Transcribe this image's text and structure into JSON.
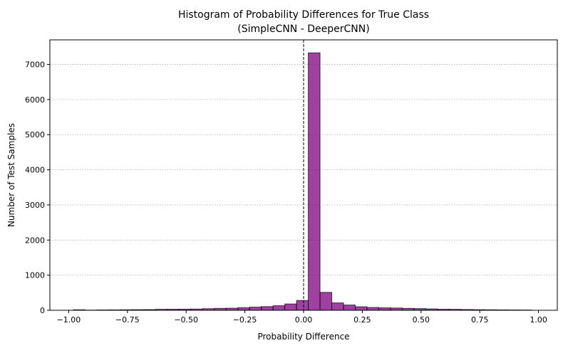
{
  "chart_data": {
    "type": "bar",
    "title": "Histogram of Probability Differences for True Class",
    "subtitle": "(SimpleCNN - DeeperCNN)",
    "xlabel": "Probability Difference",
    "ylabel": "Number of Test Samples",
    "xlim": [
      -1.08,
      1.08
    ],
    "ylim": [
      0,
      7700
    ],
    "xticks": [
      -1.0,
      -0.75,
      -0.5,
      -0.25,
      0.0,
      0.25,
      0.5,
      0.75,
      1.0
    ],
    "xtick_labels": [
      "−1.00",
      "−0.75",
      "−0.50",
      "−0.25",
      "0.00",
      "0.25",
      "0.50",
      "0.75",
      "1.00"
    ],
    "yticks": [
      0,
      1000,
      2000,
      3000,
      4000,
      5000,
      6000,
      7000
    ],
    "ytick_labels": [
      "0",
      "1000",
      "2000",
      "3000",
      "4000",
      "5000",
      "6000",
      "7000"
    ],
    "grid": "y-dotted",
    "bar_color": "#800080",
    "bar_alpha": 0.75,
    "edge_color": "#000000",
    "vline": {
      "x": 0.0,
      "style": "dashed",
      "color": "#000000"
    },
    "bin_edges": [
      -0.98,
      -0.93,
      -0.88,
      -0.83,
      -0.78,
      -0.73,
      -0.68,
      -0.63,
      -0.58,
      -0.53,
      -0.48,
      -0.43,
      -0.38,
      -0.33,
      -0.28,
      -0.23,
      -0.18,
      -0.13,
      -0.08,
      -0.03,
      0.02,
      0.07,
      0.12,
      0.17,
      0.22,
      0.27,
      0.32,
      0.37,
      0.42,
      0.47,
      0.52,
      0.57,
      0.62,
      0.67,
      0.72,
      0.77,
      0.82,
      0.87,
      0.92,
      0.97
    ],
    "values": [
      15,
      5,
      10,
      12,
      15,
      18,
      20,
      28,
      30,
      32,
      35,
      45,
      55,
      60,
      75,
      90,
      105,
      130,
      180,
      280,
      7330,
      510,
      210,
      150,
      100,
      80,
      70,
      65,
      55,
      48,
      40,
      30,
      28,
      22,
      18,
      15,
      12,
      10,
      8
    ]
  }
}
